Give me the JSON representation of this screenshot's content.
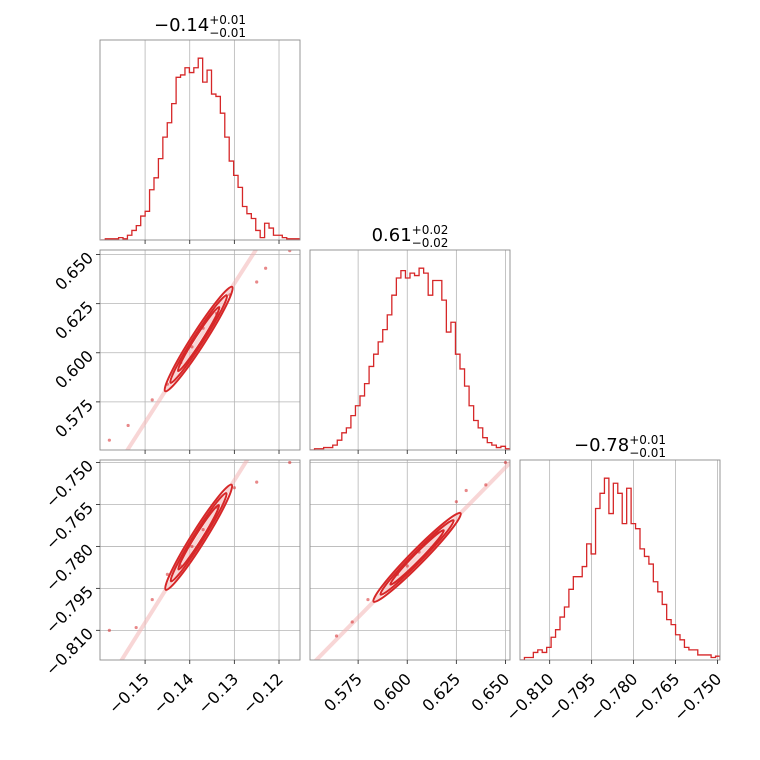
{
  "chart_data": {
    "type": "corner",
    "color": "#d62728",
    "grid": true,
    "parameters": [
      {
        "median": "−0.14",
        "plus": "+0.01",
        "minus": "−0.01",
        "range": [
          -0.1601,
          -0.1153
        ],
        "ticks": [
          -0.15,
          -0.14,
          -0.13,
          -0.12
        ],
        "tick_labels": [
          "−0.15",
          "−0.14",
          "−0.13",
          "−0.12"
        ]
      },
      {
        "median": "0.61",
        "plus": "+0.02",
        "minus": "−0.02",
        "range": [
          0.5505,
          0.6523
        ],
        "ticks": [
          0.575,
          0.6,
          0.625,
          0.65
        ],
        "tick_labels": [
          "0.575",
          "0.600",
          "0.625",
          "0.650"
        ]
      },
      {
        "median": "−0.78",
        "plus": "+0.01",
        "minus": "−0.01",
        "range": [
          -0.8206,
          -0.7491
        ],
        "ticks": [
          -0.81,
          -0.795,
          -0.78,
          -0.765,
          -0.75
        ],
        "tick_labels": [
          "−0.810",
          "−0.795",
          "−0.780",
          "−0.765",
          "−0.750"
        ]
      }
    ],
    "histograms": [
      {
        "bins": [
          -0.1599,
          -0.1153
        ],
        "counts": [
          0,
          0.5,
          0.5,
          0.5,
          1,
          0.5,
          2,
          4,
          6,
          10,
          12,
          21,
          26,
          34,
          43,
          49,
          57,
          68,
          69,
          72,
          70,
          72,
          76,
          66,
          71,
          61,
          60,
          53,
          43,
          33,
          27,
          22,
          14,
          11,
          9,
          4,
          1,
          7,
          5,
          2,
          2,
          1,
          0.5,
          0.5,
          0.5
        ]
      },
      {
        "bins": [
          0.5505,
          0.6523
        ],
        "counts": [
          0,
          0.5,
          0.5,
          1,
          1,
          2,
          4,
          7,
          9,
          14,
          18,
          22,
          27,
          34,
          39,
          44,
          49,
          55,
          63,
          70,
          73,
          70,
          72,
          71,
          74,
          72,
          63,
          69,
          69,
          61,
          48,
          52,
          39,
          33,
          26,
          18,
          12,
          9,
          5,
          3,
          2,
          1,
          1.5,
          0.5
        ]
      },
      {
        "bins": [
          -0.8206,
          -0.7491
        ],
        "counts": [
          0,
          1,
          1,
          3,
          4,
          3,
          5,
          9,
          12,
          17,
          21,
          28,
          33,
          33,
          37,
          46,
          42,
          60,
          66,
          72,
          58,
          70,
          66,
          54,
          68,
          54,
          52,
          44,
          41,
          38,
          31,
          27,
          22,
          16,
          14,
          10,
          8,
          5,
          4,
          4,
          2,
          2,
          2,
          1,
          1.5
        ]
      }
    ],
    "pairs": [
      {
        "x": 0,
        "y": 1,
        "slope": 3.54,
        "intercept": 1.0955,
        "samples": [
          [
            -0.1484,
            0.576
          ],
          [
            -0.145,
            0.584
          ],
          [
            -0.142,
            0.595
          ],
          [
            -0.1395,
            0.603
          ],
          [
            -0.137,
            0.6125
          ],
          [
            -0.134,
            0.62
          ],
          [
            -0.131,
            0.6295
          ],
          [
            -0.125,
            0.636
          ],
          [
            -0.123,
            0.643
          ],
          [
            -0.1176,
            0.652
          ],
          [
            -0.1538,
            0.563
          ],
          [
            -0.158,
            0.5555
          ]
        ]
      },
      {
        "x": 0,
        "y": 2,
        "slope": 2.545,
        "intercept": -0.4255,
        "samples": [
          [
            -0.1484,
            -0.799
          ],
          [
            -0.145,
            -0.79
          ],
          [
            -0.142,
            -0.787
          ],
          [
            -0.1395,
            -0.78
          ],
          [
            -0.137,
            -0.774
          ],
          [
            -0.134,
            -0.766
          ],
          [
            -0.13,
            -0.759
          ],
          [
            -0.125,
            -0.757
          ],
          [
            -0.1176,
            -0.75
          ],
          [
            -0.152,
            -0.809
          ],
          [
            -0.158,
            -0.81
          ]
        ]
      },
      {
        "x": 1,
        "y": 2,
        "slope": 0.715,
        "intercept": -1.2165,
        "samples": [
          [
            0.572,
            -0.807
          ],
          [
            0.58,
            -0.799
          ],
          [
            0.595,
            -0.79
          ],
          [
            0.6,
            -0.787
          ],
          [
            0.606,
            -0.782
          ],
          [
            0.615,
            -0.775
          ],
          [
            0.625,
            -0.764
          ],
          [
            0.63,
            -0.76
          ],
          [
            0.64,
            -0.758
          ],
          [
            0.65,
            -0.75
          ],
          [
            0.564,
            -0.812
          ]
        ]
      }
    ]
  }
}
